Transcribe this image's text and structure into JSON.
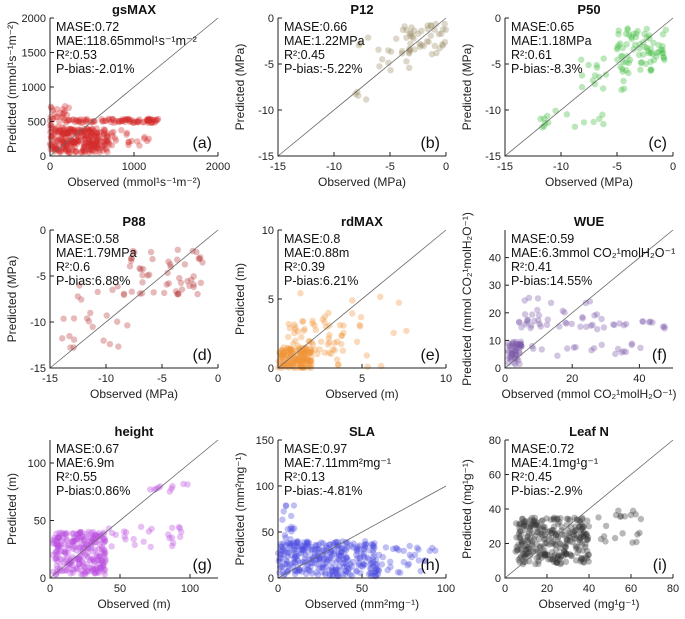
{
  "chart_data": [
    {
      "id": "a",
      "type": "scatter",
      "title": "gsMAX",
      "color": "#d42a2a",
      "xlabel": "Observed (mmol¹s⁻¹m⁻²)",
      "ylabel": "Predicted (mmol¹s⁻¹m⁻²)",
      "xlim": [
        0,
        2000
      ],
      "ylim": [
        0,
        2000
      ],
      "xticks": [
        "0",
        "1000",
        "2000"
      ],
      "xtickvals": [
        0,
        1000,
        2000
      ],
      "yticks": [
        "0",
        "500",
        "1000",
        "1500",
        "2000"
      ],
      "ytickvals": [
        0,
        500,
        1000,
        1500,
        2000
      ],
      "stats": [
        "MASE:0.72",
        "MAE:118.65mmol¹s⁻¹m⁻²",
        "R²:0.53",
        "P-bias:-2.01%"
      ],
      "letter": "(a)",
      "clusters": [
        {
          "x": [
            0,
            700
          ],
          "y": [
            50,
            400
          ],
          "n": 260
        },
        {
          "x": [
            100,
            1300
          ],
          "y": [
            480,
            540
          ],
          "n": 90
        },
        {
          "x": [
            0,
            300
          ],
          "y": [
            300,
            750
          ],
          "n": 40
        },
        {
          "x": [
            700,
            1200
          ],
          "y": [
            150,
            400
          ],
          "n": 20
        }
      ]
    },
    {
      "id": "b",
      "type": "scatter",
      "title": "P12",
      "color": "#9b8d65",
      "xlabel": "Observed (MPa)",
      "ylabel": "Predicted (MPa)",
      "xlim": [
        -15,
        0
      ],
      "ylim": [
        -15,
        0
      ],
      "xticks": [
        "-15",
        "-10",
        "-5",
        "0"
      ],
      "xtickvals": [
        -15,
        -10,
        -5,
        0
      ],
      "yticks": [
        "-15",
        "-10",
        "-5",
        "0"
      ],
      "ytickvals": [
        -15,
        -10,
        -5,
        0
      ],
      "stats": [
        "MASE:0.66",
        "MAE:1.22MPa",
        "R²:0.45",
        "P-bias:-5.22%"
      ],
      "letter": "(b)",
      "clusters": [
        {
          "x": [
            -4,
            0
          ],
          "y": [
            -4,
            -0.5
          ],
          "n": 45
        },
        {
          "x": [
            -8,
            -3
          ],
          "y": [
            -6,
            -2
          ],
          "n": 15
        },
        {
          "x": [
            -9,
            -7
          ],
          "y": [
            -9,
            -7.5
          ],
          "n": 4
        }
      ]
    },
    {
      "id": "c",
      "type": "scatter",
      "title": "P50",
      "color": "#3cba3c",
      "xlabel": "Observed (MPa)",
      "ylabel": "Predicted (MPa)",
      "xlim": [
        -15,
        0
      ],
      "ylim": [
        -15,
        0
      ],
      "xticks": [
        "-15",
        "-10",
        "-5",
        "0"
      ],
      "xtickvals": [
        -15,
        -10,
        -5,
        0
      ],
      "yticks": [
        "-15",
        "-10",
        "-5",
        "0"
      ],
      "ytickvals": [
        -15,
        -10,
        -5,
        0
      ],
      "stats": [
        "MASE:0.65",
        "MAE:1.18MPa",
        "R²:0.61",
        "P-bias:-8.3%"
      ],
      "letter": "(c)",
      "clusters": [
        {
          "x": [
            -5,
            -0.5
          ],
          "y": [
            -6,
            -1
          ],
          "n": 70
        },
        {
          "x": [
            -9,
            -4
          ],
          "y": [
            -8,
            -4
          ],
          "n": 20
        },
        {
          "x": [
            -12,
            -6
          ],
          "y": [
            -12,
            -10
          ],
          "n": 15
        }
      ]
    },
    {
      "id": "d",
      "type": "scatter",
      "title": "P88",
      "color": "#b83a3a",
      "xlabel": "Observed (MPa)",
      "ylabel": "Predicted (MPa)",
      "xlim": [
        -15,
        0
      ],
      "ylim": [
        -15,
        0
      ],
      "xticks": [
        "-15",
        "-10",
        "-5",
        "0"
      ],
      "xtickvals": [
        -15,
        -10,
        -5,
        0
      ],
      "yticks": [
        "-15",
        "-10",
        "-5",
        "0"
      ],
      "ytickvals": [
        -15,
        -10,
        -5,
        0
      ],
      "stats": [
        "MASE:0.58",
        "MAE:1.79MPa",
        "R²:0.6",
        "P-bias:6.88%"
      ],
      "letter": "(d)",
      "clusters": [
        {
          "x": [
            -8,
            -1
          ],
          "y": [
            -7,
            -2
          ],
          "n": 50
        },
        {
          "x": [
            -14,
            -8
          ],
          "y": [
            -13,
            -6
          ],
          "n": 25
        }
      ]
    },
    {
      "id": "e",
      "type": "scatter",
      "title": "rdMAX",
      "color": "#f0943a",
      "xlabel": "Observed (m)",
      "ylabel": "Predicted (m)",
      "xlim": [
        0,
        10
      ],
      "ylim": [
        0,
        10
      ],
      "xticks": [
        "0",
        "5",
        "10"
      ],
      "xtickvals": [
        0,
        5,
        10
      ],
      "yticks": [
        "0",
        "5",
        "10"
      ],
      "ytickvals": [
        0,
        5,
        10
      ],
      "stats": [
        "MASE:0.8",
        "MAE:0.88m",
        "R²:0.39",
        "P-bias:6.21%"
      ],
      "letter": "(e)",
      "clusters": [
        {
          "x": [
            0,
            2
          ],
          "y": [
            0,
            1.5
          ],
          "n": 160
        },
        {
          "x": [
            0.5,
            4
          ],
          "y": [
            1,
            3.5
          ],
          "n": 50
        },
        {
          "x": [
            1,
            8
          ],
          "y": [
            0,
            5.5
          ],
          "n": 25
        }
      ]
    },
    {
      "id": "f",
      "type": "scatter",
      "title": "WUE",
      "color": "#7a5aa8",
      "xlabel": "Observed (mmol CO₂¹molH₂O⁻¹)",
      "ylabel": "Predicted (mmol CO₂¹molH₂O⁻¹)",
      "xlim": [
        0,
        50
      ],
      "ylim": [
        0,
        50
      ],
      "xticks": [
        "0",
        "20",
        "40"
      ],
      "xtickvals": [
        0,
        20,
        40
      ],
      "yticks": [
        "0",
        "10",
        "20",
        "30",
        "40"
      ],
      "ytickvals": [
        0,
        10,
        20,
        30,
        40
      ],
      "stats": [
        "MASE:0.59",
        "MAE:6.3mmol CO₂¹molH₂O⁻¹",
        "R²:0.41",
        "P-bias:14.55%"
      ],
      "letter": "(f)",
      "clusters": [
        {
          "x": [
            1,
            5
          ],
          "y": [
            1,
            10
          ],
          "n": 50
        },
        {
          "x": [
            3,
            48
          ],
          "y": [
            14,
            18
          ],
          "n": 40
        },
        {
          "x": [
            3,
            45
          ],
          "y": [
            4,
            9
          ],
          "n": 20
        },
        {
          "x": [
            3,
            30
          ],
          "y": [
            18,
            30
          ],
          "n": 15
        }
      ]
    },
    {
      "id": "g",
      "type": "scatter",
      "title": "height",
      "color": "#bb4ee0",
      "xlabel": "Observed (m)",
      "ylabel": "Predicted (m)",
      "xlim": [
        0,
        120
      ],
      "ylim": [
        0,
        120
      ],
      "xticks": [
        "0",
        "50",
        "100"
      ],
      "xtickvals": [
        0,
        50,
        100
      ],
      "yticks": [
        "0",
        "50",
        "100"
      ],
      "ytickvals": [
        0,
        50,
        100
      ],
      "stats": [
        "MASE:0.67",
        "MAE:6.9m",
        "R²:0.55",
        "P-bias:0.86%"
      ],
      "letter": "(g)",
      "clusters": [
        {
          "x": [
            2,
            40
          ],
          "y": [
            3,
            40
          ],
          "n": 260
        },
        {
          "x": [
            40,
            95
          ],
          "y": [
            25,
            45
          ],
          "n": 25
        },
        {
          "x": [
            60,
            100
          ],
          "y": [
            75,
            82
          ],
          "n": 10
        }
      ]
    },
    {
      "id": "h",
      "type": "scatter",
      "title": "SLA",
      "color": "#4a4ae0",
      "xlabel": "Observed (mm²mg⁻¹)",
      "ylabel": "Predicted (mm²mg⁻¹)",
      "xlim": [
        0,
        100
      ],
      "ylim": [
        0,
        150
      ],
      "xticks": [
        "0",
        "50",
        "100"
      ],
      "xtickvals": [
        0,
        50,
        100
      ],
      "yticks": [
        "0",
        "50",
        "100",
        "150"
      ],
      "ytickvals": [
        0,
        50,
        100,
        150
      ],
      "stats": [
        "MASE:0.97",
        "MAE:7.11mm²mg⁻¹",
        "R²:0.13",
        "P-bias:-4.81%"
      ],
      "letter": "(h)",
      "clusters": [
        {
          "x": [
            0,
            60
          ],
          "y": [
            2,
            40
          ],
          "n": 320
        },
        {
          "x": [
            60,
            95
          ],
          "y": [
            5,
            35
          ],
          "n": 30
        },
        {
          "x": [
            2,
            10
          ],
          "y": [
            40,
            85
          ],
          "n": 15
        }
      ]
    },
    {
      "id": "i",
      "type": "scatter",
      "title": "Leaf N",
      "color": "#333333",
      "xlabel": "Observed (mg¹g⁻¹)",
      "ylabel": "Predicted (mg¹g⁻¹)",
      "xlim": [
        0,
        80
      ],
      "ylim": [
        0,
        80
      ],
      "xticks": [
        "0",
        "20",
        "40",
        "60",
        "80"
      ],
      "xtickvals": [
        0,
        20,
        40,
        60,
        80
      ],
      "yticks": [
        "0",
        "20",
        "40",
        "60",
        "80"
      ],
      "ytickvals": [
        0,
        20,
        40,
        60,
        80
      ],
      "stats": [
        "MASE:0.72",
        "MAE:4.1mg¹g⁻¹",
        "R²:0.45",
        "P-bias:-2.9%"
      ],
      "letter": "(i)",
      "clusters": [
        {
          "x": [
            5,
            40
          ],
          "y": [
            8,
            35
          ],
          "n": 280
        },
        {
          "x": [
            35,
            65
          ],
          "y": [
            20,
            40
          ],
          "n": 25
        }
      ]
    }
  ]
}
